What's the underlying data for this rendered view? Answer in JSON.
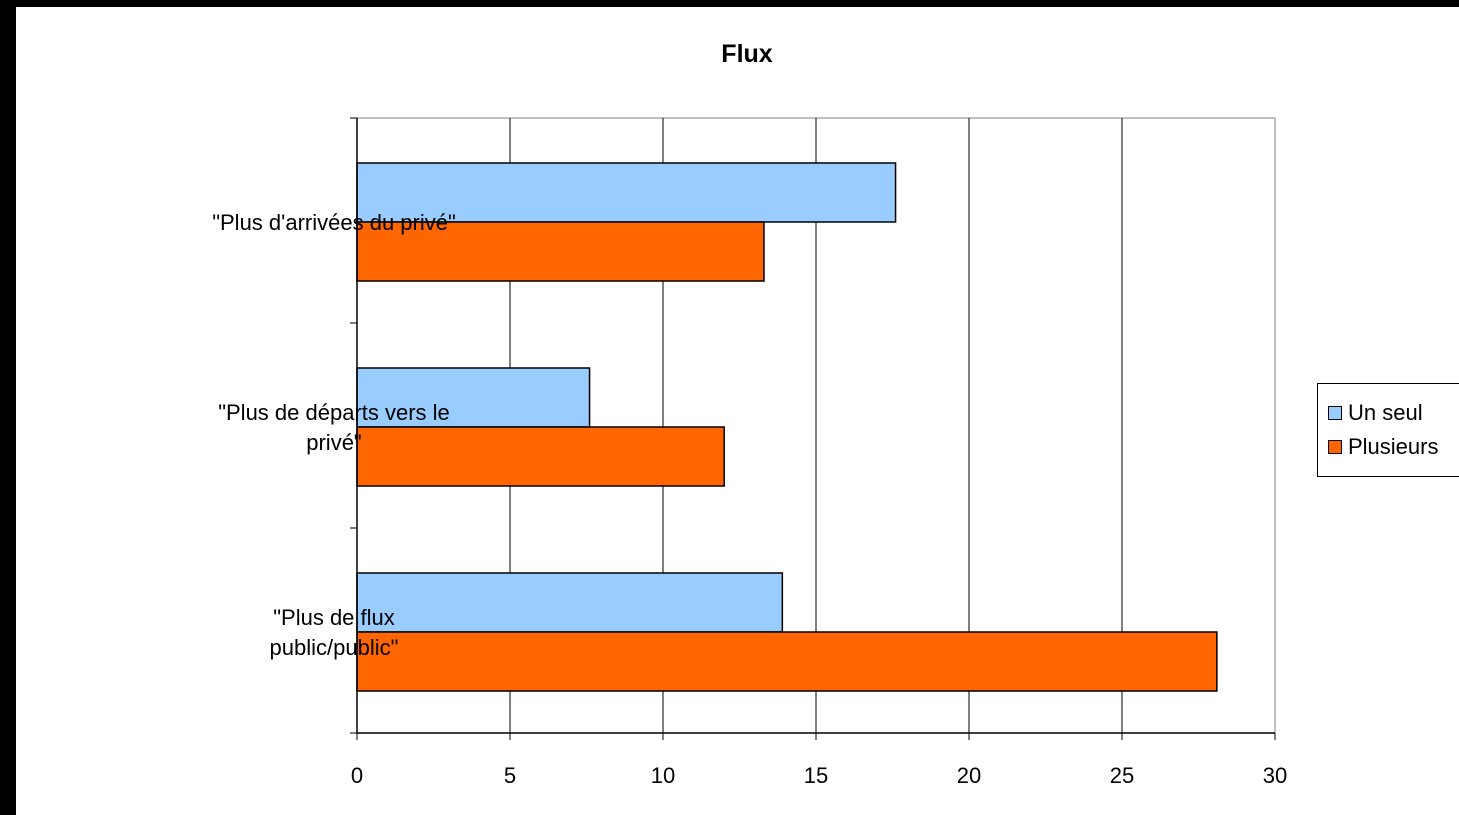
{
  "chart_data": {
    "type": "bar",
    "orientation": "horizontal",
    "title": "Flux",
    "xlabel": "",
    "ylabel": "",
    "categories": [
      "\"Plus d'arrivées du privé\"",
      "\"Plus de départs vers le privé\"",
      "\"Plus de flux public/public\""
    ],
    "category_lines": [
      [
        "\"Plus d'arrivées du privé\""
      ],
      [
        "\"Plus de départs vers le",
        "privé\""
      ],
      [
        "\"Plus de flux",
        "public/public\""
      ]
    ],
    "series": [
      {
        "name": "Un seul",
        "color": "#99ccff",
        "values": [
          17.6,
          7.6,
          13.9
        ]
      },
      {
        "name": "Plusieurs",
        "color": "#ff6600",
        "values": [
          13.3,
          12.0,
          28.1
        ]
      }
    ],
    "xlim": [
      0,
      30
    ],
    "xticks": [
      "0",
      "5",
      "10",
      "15",
      "20",
      "25",
      "30"
    ],
    "grid": true,
    "legend": "right"
  }
}
